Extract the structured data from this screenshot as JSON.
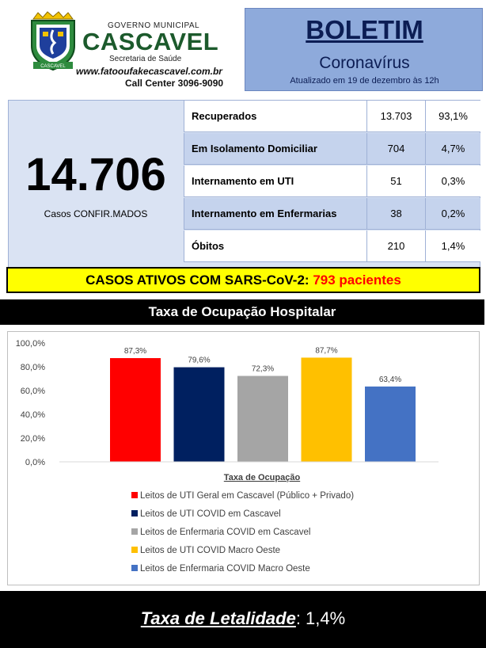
{
  "header": {
    "logo_icon": "cascavel-coat-of-arms-icon",
    "logo_text": "CASCAVEL",
    "gov_small": "GOVERNO MUNICIPAL",
    "gov_big": "CASCAVEL",
    "department": "Secretaria de Saúde",
    "website": "www.fatooufakecascavel.com.br",
    "call_center": "Call Center 3096-9090"
  },
  "boletim": {
    "title": "BOLETIM",
    "subtitle": "Coronavírus",
    "updated": "Atualizado em 19 de dezembro  às 12h"
  },
  "stats": {
    "confirmed_value": "14.706",
    "confirmed_label": "Casos CONFIR.MADOS",
    "rows": [
      {
        "label": "Recuperados",
        "count": "13.703",
        "percent": "93,1%"
      },
      {
        "label": "Em Isolamento Domiciliar",
        "count": "704",
        "percent": "4,7%"
      },
      {
        "label": "Internamento em UTI",
        "count": "51",
        "percent": "0,3%"
      },
      {
        "label": "Internamento em Enfermarias",
        "count": "38",
        "percent": "0,2%"
      },
      {
        "label": "Óbitos",
        "count": "210",
        "percent": "1,4%"
      }
    ]
  },
  "active_cases": {
    "label": "CASOS ATIVOS COM SARS-CoV-2:",
    "value": "793 pacientes"
  },
  "occupancy_title": "Taxa de Ocupação Hospitalar",
  "chart_data": {
    "type": "bar",
    "title": "",
    "xlabel": "Taxa de Ocupação",
    "ylabel": "",
    "ylim": [
      0,
      100
    ],
    "yticks": [
      "0,0%",
      "20,0%",
      "40,0%",
      "60,0%",
      "80,0%",
      "100,0%"
    ],
    "grid": false,
    "legend_position": "bottom",
    "series": [
      {
        "name": "Leitos de UTI Geral em Cascavel (Público + Privado)",
        "value": 87.3,
        "label": "87,3%",
        "color": "#ff0000"
      },
      {
        "name": "Leitos de UTI COVID em Cascavel",
        "value": 79.6,
        "label": "79,6%",
        "color": "#002060"
      },
      {
        "name": "Leitos de Enfermaria COVID em Cascavel",
        "value": 72.3,
        "label": "72,3%",
        "color": "#a5a5a5"
      },
      {
        "name": "Leitos de UTI COVID Macro Oeste",
        "value": 87.7,
        "label": "87,7%",
        "color": "#ffc000"
      },
      {
        "name": "Leitos de Enfermaria COVID Macro Oeste",
        "value": 63.4,
        "label": "63,4%",
        "color": "#4472c4"
      }
    ]
  },
  "lethality": {
    "label": "Taxa de Letalidade",
    "value": ": 1,4%"
  }
}
